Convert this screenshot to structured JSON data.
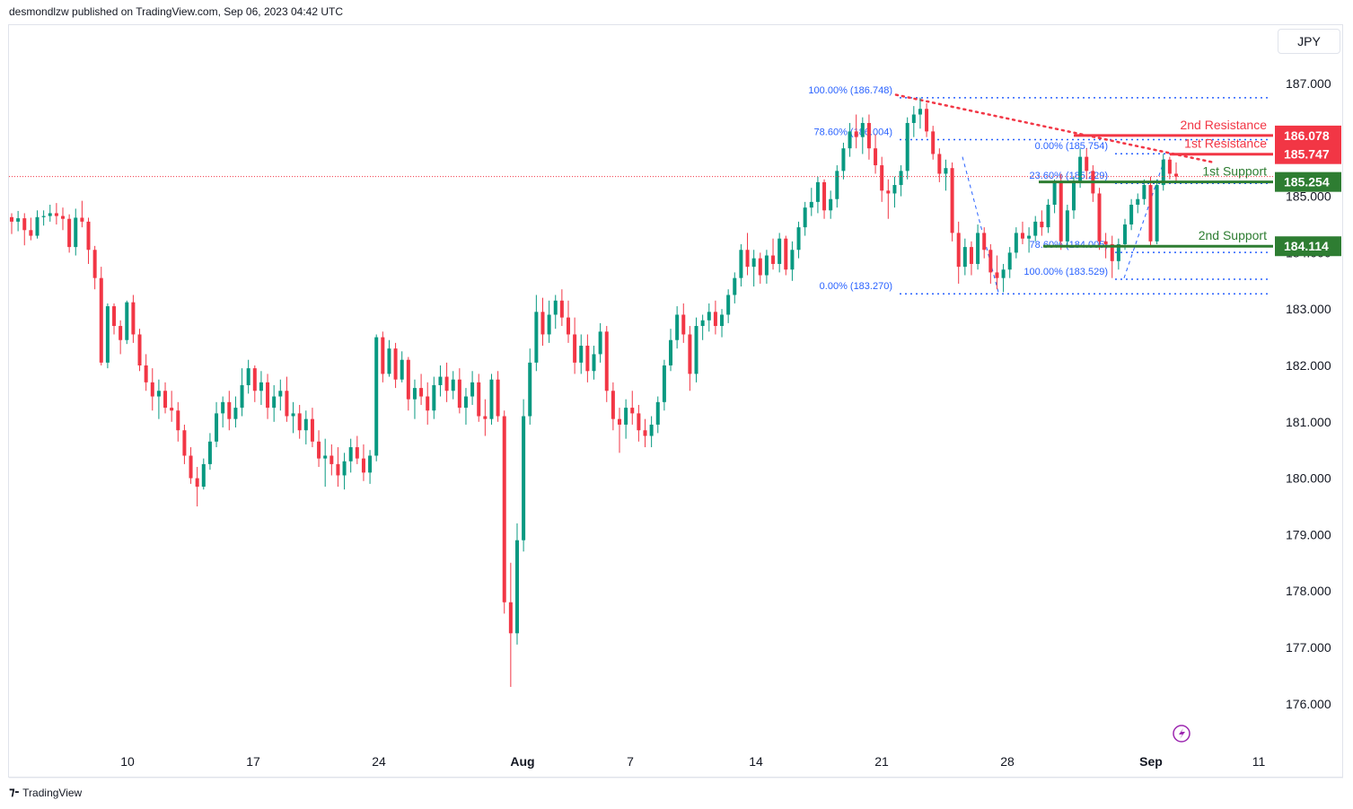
{
  "header": {
    "text": "desmondlzw published on TradingView.com, Sep 06, 2023 04:42 UTC"
  },
  "currency": "JPY",
  "footer": {
    "logo_icon": "tradingview-logo-icon",
    "brand": "TradingView"
  },
  "colors": {
    "up": "#089981",
    "down": "#f23645",
    "resistance": "#f23645",
    "support": "#2e7d32",
    "fib": "#2962ff",
    "trend": "#f23645"
  },
  "chart_data": {
    "type": "candlestick",
    "y_axis": {
      "ticks": [
        187,
        186,
        185,
        184,
        183,
        182,
        181,
        180,
        179,
        178,
        177,
        176
      ],
      "tick_labels": [
        "187.000",
        "186.000",
        "185.000",
        "184.000",
        "183.000",
        "182.000",
        "181.000",
        "180.000",
        "179.000",
        "178.000",
        "177.000",
        "176.000"
      ],
      "range": [
        175.6,
        187.8
      ]
    },
    "x_axis": {
      "tick_labels": [
        "10",
        "17",
        "24",
        "Aug",
        "7",
        "14",
        "21",
        "28",
        "Sep",
        "11"
      ],
      "tick_days": [
        9,
        16,
        23,
        31,
        37,
        44,
        51,
        58,
        66,
        72
      ]
    },
    "current_price": 185.35,
    "price_tags": [
      {
        "label": "186.078",
        "value": 186.078,
        "kind": "resistance"
      },
      {
        "label": "185.747",
        "value": 185.747,
        "kind": "resistance"
      },
      {
        "label": "185.254",
        "value": 185.254,
        "kind": "support"
      },
      {
        "label": "184.114",
        "value": 184.114,
        "kind": "support"
      }
    ],
    "levels": [
      {
        "name": "2nd Resistance",
        "value": 186.078,
        "kind": "resistance",
        "from_day": 61.5
      },
      {
        "name": "1st Resistance",
        "value": 185.747,
        "kind": "resistance",
        "from_day": 65.0
      },
      {
        "name": "1st Support",
        "value": 185.254,
        "kind": "support",
        "from_day": 59.5
      },
      {
        "name": "2nd Support",
        "value": 184.114,
        "kind": "support",
        "from_day": 60.0
      }
    ],
    "fib_levels": [
      {
        "label": "100.00% (186.748)",
        "value": 186.748,
        "from_day": 52.0,
        "to_day": 72.0
      },
      {
        "label": "78.60% (186.004)",
        "value": 186.004,
        "from_day": 52.0,
        "to_day": 72.0
      },
      {
        "label": "0.00% (183.270)",
        "value": 183.27,
        "from_day": 52.0,
        "to_day": 72.0
      },
      {
        "label": "0.00% (185.754)",
        "value": 185.754,
        "from_day": 64.0,
        "to_day": 72.0
      },
      {
        "label": "23.60% (185.229)",
        "value": 185.229,
        "from_day": 64.0,
        "to_day": 72.0
      },
      {
        "label": "78.60% (184.005)",
        "value": 184.005,
        "from_day": 64.0,
        "to_day": 72.0
      },
      {
        "label": "100.00% (183.529)",
        "value": 183.529,
        "from_day": 64.0,
        "to_day": 72.0
      }
    ],
    "trendline": {
      "points": [
        [
          51.8,
          186.8
        ],
        [
          69.5,
          185.6
        ]
      ]
    },
    "swing_lines": [
      {
        "points": [
          [
            55.5,
            185.7
          ],
          [
            57.5,
            183.3
          ]
        ]
      },
      {
        "points": [
          [
            64.5,
            183.55
          ],
          [
            66.8,
            185.7
          ]
        ]
      }
    ],
    "candles": [
      [
        184.63,
        184.7,
        184.33,
        184.55
      ],
      [
        184.55,
        184.74,
        184.38,
        184.61
      ],
      [
        184.61,
        184.7,
        184.13,
        184.4
      ],
      [
        184.4,
        184.62,
        184.22,
        184.3
      ],
      [
        184.3,
        184.75,
        184.25,
        184.63
      ],
      [
        184.63,
        184.75,
        184.48,
        184.65
      ],
      [
        184.65,
        184.85,
        184.55,
        184.7
      ],
      [
        184.7,
        184.88,
        184.5,
        184.65
      ],
      [
        184.65,
        184.8,
        184.4,
        184.6
      ],
      [
        184.6,
        184.68,
        184.0,
        184.1
      ],
      [
        184.1,
        184.78,
        183.95,
        184.62
      ],
      [
        184.62,
        184.92,
        184.45,
        184.55
      ],
      [
        184.55,
        184.62,
        183.8,
        184.05
      ],
      [
        184.05,
        184.12,
        183.35,
        183.55
      ],
      [
        183.55,
        183.75,
        182.0,
        182.05
      ],
      [
        182.05,
        183.1,
        181.95,
        183.05
      ],
      [
        183.05,
        183.1,
        182.55,
        182.7
      ],
      [
        182.7,
        182.8,
        182.2,
        182.45
      ],
      [
        182.45,
        183.15,
        182.38,
        183.12
      ],
      [
        183.12,
        183.25,
        182.4,
        182.55
      ],
      [
        182.55,
        182.65,
        181.9,
        182.0
      ],
      [
        182.0,
        182.2,
        181.55,
        181.7
      ],
      [
        181.7,
        181.95,
        181.2,
        181.45
      ],
      [
        181.45,
        181.75,
        181.05,
        181.55
      ],
      [
        181.55,
        181.7,
        181.15,
        181.25
      ],
      [
        181.25,
        181.55,
        181.0,
        181.2
      ],
      [
        181.2,
        181.35,
        180.65,
        180.85
      ],
      [
        180.85,
        180.95,
        180.25,
        180.4
      ],
      [
        180.4,
        180.55,
        179.9,
        180.0
      ],
      [
        180.0,
        180.2,
        179.5,
        179.85
      ],
      [
        179.85,
        180.35,
        179.8,
        180.25
      ],
      [
        180.25,
        180.8,
        180.15,
        180.65
      ],
      [
        180.65,
        181.35,
        180.55,
        181.15
      ],
      [
        181.15,
        181.45,
        180.9,
        181.35
      ],
      [
        181.35,
        181.55,
        180.85,
        181.05
      ],
      [
        181.05,
        181.45,
        180.9,
        181.25
      ],
      [
        181.25,
        181.95,
        181.1,
        181.65
      ],
      [
        181.65,
        182.1,
        181.5,
        181.95
      ],
      [
        181.95,
        182.0,
        181.35,
        181.55
      ],
      [
        181.55,
        181.9,
        181.3,
        181.7
      ],
      [
        181.7,
        181.85,
        181.05,
        181.25
      ],
      [
        181.25,
        181.65,
        181.0,
        181.45
      ],
      [
        181.45,
        181.75,
        181.2,
        181.55
      ],
      [
        181.55,
        181.8,
        181.0,
        181.1
      ],
      [
        181.1,
        181.35,
        180.8,
        181.15
      ],
      [
        181.15,
        181.3,
        180.7,
        180.85
      ],
      [
        180.85,
        181.2,
        180.6,
        181.05
      ],
      [
        181.05,
        181.25,
        180.55,
        180.65
      ],
      [
        180.65,
        180.85,
        180.2,
        180.35
      ],
      [
        180.35,
        180.7,
        179.85,
        180.4
      ],
      [
        180.4,
        180.6,
        180.05,
        180.25
      ],
      [
        180.25,
        180.55,
        179.85,
        180.05
      ],
      [
        180.05,
        180.45,
        179.8,
        180.3
      ],
      [
        180.3,
        180.7,
        180.1,
        180.55
      ],
      [
        180.55,
        180.75,
        180.25,
        180.35
      ],
      [
        180.35,
        180.6,
        179.95,
        180.1
      ],
      [
        180.1,
        180.5,
        179.9,
        180.4
      ],
      [
        180.4,
        182.55,
        180.3,
        182.5
      ],
      [
        182.5,
        182.6,
        181.7,
        181.85
      ],
      [
        181.85,
        182.45,
        181.8,
        182.3
      ],
      [
        182.3,
        182.4,
        181.6,
        181.75
      ],
      [
        181.75,
        182.25,
        181.7,
        182.1
      ],
      [
        182.1,
        182.15,
        181.2,
        181.4
      ],
      [
        181.4,
        181.75,
        181.05,
        181.6
      ],
      [
        181.6,
        181.85,
        181.3,
        181.45
      ],
      [
        181.45,
        181.7,
        180.95,
        181.2
      ],
      [
        181.2,
        181.8,
        181.05,
        181.65
      ],
      [
        181.65,
        182.0,
        181.45,
        181.8
      ],
      [
        181.8,
        182.05,
        181.35,
        181.55
      ],
      [
        181.55,
        181.9,
        181.4,
        181.75
      ],
      [
        181.75,
        181.95,
        181.15,
        181.25
      ],
      [
        181.25,
        181.6,
        180.95,
        181.45
      ],
      [
        181.45,
        181.9,
        181.3,
        181.7
      ],
      [
        181.7,
        181.85,
        181.0,
        181.1
      ],
      [
        181.1,
        181.4,
        180.75,
        181.05
      ],
      [
        181.05,
        181.85,
        180.95,
        181.75
      ],
      [
        181.75,
        181.9,
        181.0,
        181.1
      ],
      [
        181.1,
        181.2,
        177.6,
        177.8
      ],
      [
        177.8,
        178.5,
        176.3,
        177.25
      ],
      [
        177.25,
        179.2,
        177.05,
        178.9
      ],
      [
        178.9,
        181.4,
        178.7,
        181.1
      ],
      [
        181.1,
        182.3,
        180.95,
        182.05
      ],
      [
        182.05,
        183.25,
        181.9,
        182.95
      ],
      [
        182.95,
        183.2,
        182.35,
        182.55
      ],
      [
        182.55,
        183.15,
        182.4,
        182.9
      ],
      [
        182.9,
        183.25,
        182.65,
        183.15
      ],
      [
        183.15,
        183.35,
        182.7,
        182.85
      ],
      [
        182.85,
        183.15,
        182.4,
        182.55
      ],
      [
        182.55,
        182.85,
        181.85,
        182.05
      ],
      [
        182.05,
        182.55,
        181.85,
        182.35
      ],
      [
        182.35,
        182.55,
        181.7,
        181.9
      ],
      [
        181.9,
        182.35,
        181.75,
        182.2
      ],
      [
        182.2,
        182.75,
        182.05,
        182.6
      ],
      [
        182.6,
        182.7,
        181.35,
        181.55
      ],
      [
        181.55,
        181.7,
        180.85,
        181.05
      ],
      [
        181.05,
        181.25,
        180.45,
        180.95
      ],
      [
        180.95,
        181.4,
        180.7,
        181.25
      ],
      [
        181.25,
        181.55,
        180.95,
        181.15
      ],
      [
        181.15,
        181.3,
        180.65,
        180.85
      ],
      [
        180.85,
        181.05,
        180.55,
        180.75
      ],
      [
        180.75,
        181.1,
        180.55,
        180.95
      ],
      [
        180.95,
        181.45,
        180.8,
        181.35
      ],
      [
        181.35,
        182.1,
        181.2,
        182.0
      ],
      [
        182.0,
        182.65,
        181.9,
        182.45
      ],
      [
        182.45,
        183.05,
        182.3,
        182.9
      ],
      [
        182.9,
        183.1,
        182.4,
        182.55
      ],
      [
        182.55,
        182.7,
        181.55,
        181.85
      ],
      [
        181.85,
        182.85,
        181.7,
        182.7
      ],
      [
        182.7,
        182.9,
        182.45,
        182.8
      ],
      [
        182.8,
        183.1,
        182.6,
        182.95
      ],
      [
        182.95,
        183.15,
        182.55,
        182.7
      ],
      [
        182.7,
        183.0,
        182.5,
        182.9
      ],
      [
        182.9,
        183.35,
        182.75,
        183.25
      ],
      [
        183.25,
        183.65,
        183.1,
        183.55
      ],
      [
        183.55,
        184.15,
        183.4,
        184.05
      ],
      [
        184.05,
        184.35,
        183.6,
        183.75
      ],
      [
        183.75,
        184.05,
        183.4,
        183.9
      ],
      [
        183.9,
        184.0,
        183.45,
        183.6
      ],
      [
        183.6,
        184.05,
        183.45,
        183.95
      ],
      [
        183.95,
        184.25,
        183.7,
        183.8
      ],
      [
        183.8,
        184.35,
        183.65,
        184.25
      ],
      [
        184.25,
        184.3,
        183.6,
        183.7
      ],
      [
        183.7,
        184.2,
        183.5,
        184.05
      ],
      [
        184.05,
        184.55,
        183.9,
        184.45
      ],
      [
        184.45,
        184.9,
        184.3,
        184.8
      ],
      [
        184.8,
        185.15,
        184.65,
        184.9
      ],
      [
        184.9,
        185.35,
        184.7,
        185.25
      ],
      [
        185.25,
        185.3,
        184.6,
        184.75
      ],
      [
        184.75,
        185.1,
        184.6,
        184.95
      ],
      [
        184.95,
        185.55,
        184.8,
        185.45
      ],
      [
        185.45,
        185.95,
        185.3,
        185.85
      ],
      [
        185.85,
        186.3,
        185.7,
        186.15
      ],
      [
        186.15,
        186.45,
        185.85,
        186.05
      ],
      [
        186.05,
        186.4,
        185.75,
        186.3
      ],
      [
        186.3,
        186.45,
        185.65,
        185.85
      ],
      [
        185.85,
        186.1,
        185.4,
        185.55
      ],
      [
        185.55,
        185.7,
        184.9,
        185.1
      ],
      [
        185.1,
        185.3,
        184.6,
        185.05
      ],
      [
        185.05,
        185.35,
        184.8,
        185.2
      ],
      [
        185.2,
        185.55,
        185.0,
        185.45
      ],
      [
        185.45,
        186.4,
        185.3,
        186.3
      ],
      [
        186.3,
        186.6,
        186.05,
        186.45
      ],
      [
        186.45,
        186.75,
        186.2,
        186.55
      ],
      [
        186.55,
        186.65,
        186.05,
        186.15
      ],
      [
        186.15,
        186.25,
        185.65,
        185.75
      ],
      [
        185.75,
        185.85,
        185.25,
        185.4
      ],
      [
        185.4,
        185.65,
        185.1,
        185.5
      ],
      [
        185.5,
        185.6,
        184.2,
        184.35
      ],
      [
        184.35,
        184.55,
        183.45,
        183.75
      ],
      [
        183.75,
        184.25,
        183.6,
        184.1
      ],
      [
        184.1,
        184.2,
        183.6,
        183.8
      ],
      [
        183.8,
        184.5,
        183.7,
        184.35
      ],
      [
        184.35,
        184.45,
        183.9,
        184.05
      ],
      [
        184.05,
        184.15,
        183.45,
        183.65
      ],
      [
        183.65,
        183.95,
        183.35,
        183.55
      ],
      [
        183.55,
        183.8,
        183.3,
        183.7
      ],
      [
        183.7,
        184.1,
        183.55,
        184.0
      ],
      [
        184.0,
        184.45,
        183.9,
        184.35
      ],
      [
        184.35,
        184.55,
        184.15,
        184.25
      ],
      [
        184.25,
        184.45,
        184.0,
        184.3
      ],
      [
        184.3,
        184.65,
        184.2,
        184.55
      ],
      [
        184.55,
        184.75,
        184.3,
        184.45
      ],
      [
        184.45,
        184.95,
        184.35,
        184.85
      ],
      [
        184.85,
        185.3,
        184.7,
        185.25
      ],
      [
        185.25,
        185.4,
        184.05,
        184.2
      ],
      [
        184.2,
        184.85,
        184.1,
        184.75
      ],
      [
        184.75,
        185.35,
        184.6,
        185.25
      ],
      [
        185.25,
        185.85,
        185.15,
        185.7
      ],
      [
        185.7,
        185.85,
        185.3,
        185.45
      ],
      [
        185.45,
        185.55,
        184.9,
        185.05
      ],
      [
        185.05,
        185.15,
        184.05,
        184.2
      ],
      [
        184.2,
        184.35,
        183.9,
        184.15
      ],
      [
        184.15,
        184.3,
        183.55,
        183.85
      ],
      [
        183.85,
        184.25,
        183.7,
        184.15
      ],
      [
        184.15,
        184.6,
        184.05,
        184.5
      ],
      [
        184.5,
        184.95,
        184.4,
        184.85
      ],
      [
        184.85,
        185.05,
        184.7,
        184.95
      ],
      [
        184.95,
        185.3,
        184.85,
        185.2
      ],
      [
        185.2,
        185.35,
        184.1,
        184.2
      ],
      [
        184.2,
        185.3,
        184.15,
        185.2
      ],
      [
        185.2,
        185.75,
        185.1,
        185.65
      ],
      [
        185.65,
        185.7,
        185.3,
        185.4
      ],
      [
        185.4,
        185.6,
        185.25,
        185.35
      ]
    ],
    "candle_start_day": 0,
    "candle_step_days": 0.4
  }
}
